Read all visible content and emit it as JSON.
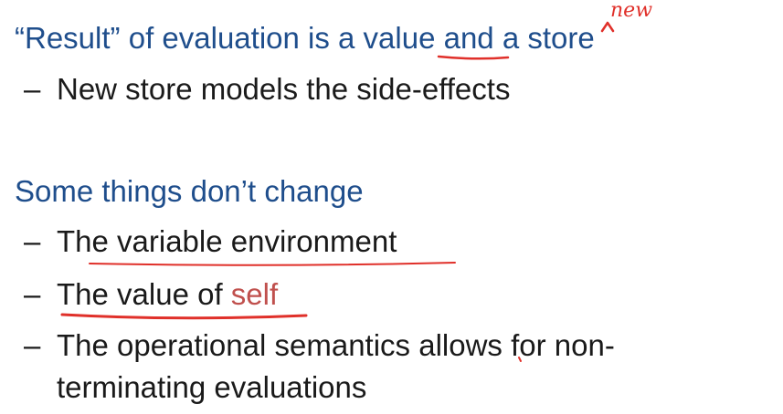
{
  "slide": {
    "bullet1": {
      "open_quote": "“",
      "result_word": "Result",
      "close_quote": "”",
      "text_a": " of evaluation is a ",
      "value_word": "value",
      "text_b": " and a",
      "store_word": "store"
    },
    "bullet1_sub": {
      "dash": "–",
      "text": "New store models the side-effects"
    },
    "bullet2": {
      "text": "Some things don’t change"
    },
    "bullet2_subs": [
      {
        "dash": "–",
        "text": "The variable environment"
      },
      {
        "dash": "–",
        "text_a": "The value of ",
        "text_red": "self"
      },
      {
        "dash": "–",
        "text": "The operational semantics allows for non-",
        "text_cont": "terminating evaluations"
      }
    ]
  },
  "annotations": {
    "handwritten_insert": "new",
    "ink_color": "#e0302a"
  }
}
